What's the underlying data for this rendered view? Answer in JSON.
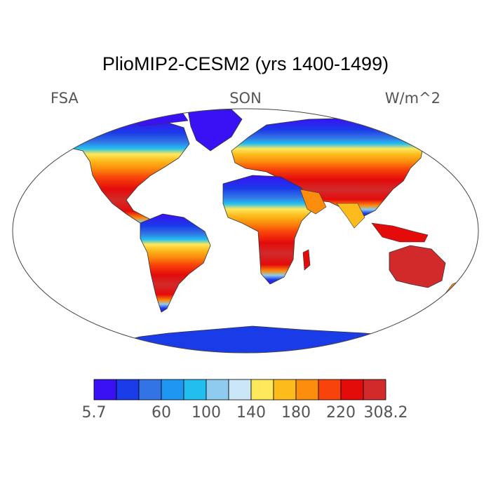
{
  "title": "PlioMIP2-CESM2 (yrs 1400-1499)",
  "left_label": "FSA",
  "center_label": "SON",
  "right_label": "W/m^2",
  "legend": {
    "colors": [
      "#3a10f5",
      "#1a3be8",
      "#3273e6",
      "#1e96f2",
      "#22bef0",
      "#8ecbee",
      "#cbe6f7",
      "#fde85c",
      "#fdbb1c",
      "#fb8c0c",
      "#f8430a",
      "#e40b0b",
      "#d22a2a"
    ],
    "ticks": [
      "5.7",
      "60",
      "100",
      "140",
      "180",
      "220",
      "308.2"
    ],
    "tick_edges": [
      0,
      3,
      5,
      7,
      9,
      11,
      13
    ]
  }
}
